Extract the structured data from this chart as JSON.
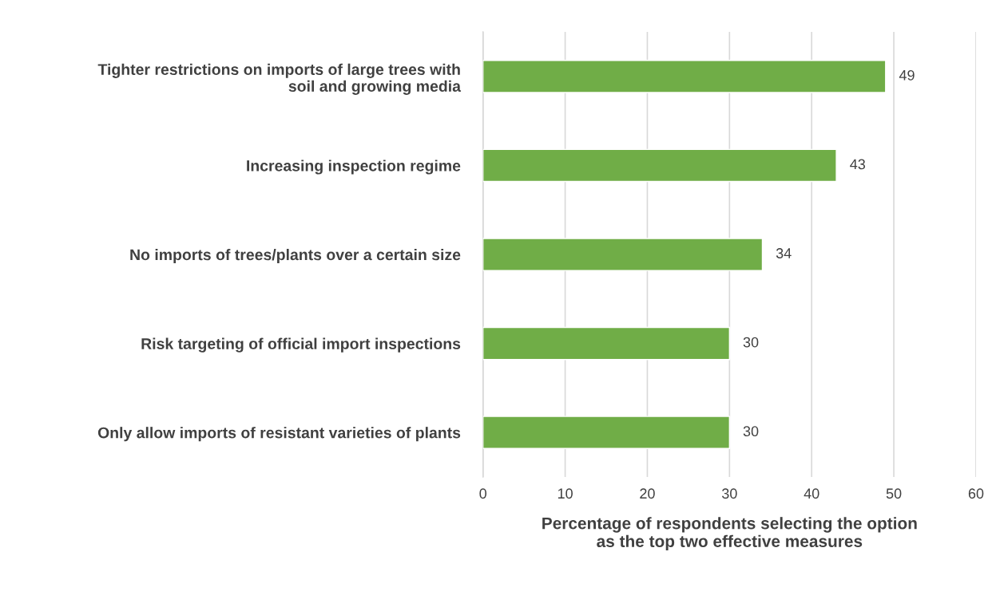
{
  "chart_data": {
    "type": "bar",
    "orientation": "horizontal",
    "categories": [
      "Tighter restrictions on imports of large trees with\nsoil and growing media",
      "Increasing inspection regime",
      "No imports of trees/plants over a certain size",
      "Risk targeting of official import inspections",
      "Only allow imports of resistant varieties of plants"
    ],
    "values": [
      49,
      43,
      34,
      30,
      30
    ],
    "color": "#70ad47",
    "xlabel": "Percentage of respondents selecting the option\nas the top two effective measures",
    "xlim": [
      0,
      60
    ],
    "xticks": [
      0,
      10,
      20,
      30,
      40,
      50,
      60
    ],
    "grid": "x",
    "data_labels": true
  }
}
